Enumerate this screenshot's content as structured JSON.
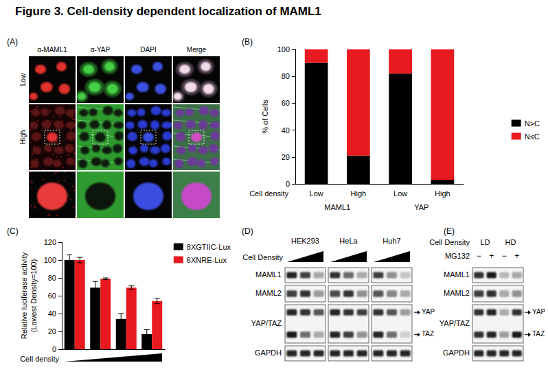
{
  "title": "Figure 3. Cell-density dependent localization of MAML1",
  "panel_a": {
    "label": "(A)",
    "columns": [
      "α-MAML1",
      "α-YAP",
      "DAPI",
      "Merge"
    ],
    "rows": [
      "Low",
      "High"
    ]
  },
  "chart_data": [
    {
      "label": "(B)",
      "type": "bar",
      "stacked": true,
      "grid": false,
      "legend": "right",
      "categories": [
        "Low",
        "High",
        "Low",
        "High"
      ],
      "groups": [
        "MAML1",
        "YAP"
      ],
      "x_label": "Cell density",
      "y_label": "% of Cells",
      "ylim": [
        0,
        100
      ],
      "yticks": [
        0,
        20,
        40,
        60,
        80,
        100
      ],
      "series": [
        {
          "name": "N>C",
          "color": "#000000",
          "values": [
            90,
            21,
            82,
            3
          ]
        },
        {
          "name": "N≤C",
          "color": "#e8191f",
          "values": [
            10,
            79,
            18,
            97
          ]
        }
      ]
    },
    {
      "label": "(C)",
      "type": "bar",
      "grid": false,
      "legend": "top right",
      "categories": [
        null,
        null,
        null,
        null
      ],
      "x_label": "Cell density",
      "y_label": "Relative luciferase activity\n(Lowest Density=100)",
      "ylim": [
        0,
        120
      ],
      "yticks": [
        0,
        20,
        40,
        60,
        80,
        100,
        120
      ],
      "series": [
        {
          "name": "8XGTIIC-Lux",
          "color": "#000000",
          "values": [
            100,
            69,
            34,
            17
          ],
          "errors": [
            6,
            7,
            6,
            5
          ]
        },
        {
          "name": "6XNRE-Lux",
          "color": "#e8191f",
          "values": [
            100,
            79,
            69,
            54
          ],
          "errors": [
            3,
            1,
            2,
            3
          ]
        }
      ]
    }
  ],
  "panel_d": {
    "label": "(D)",
    "density_label": "Cell Density",
    "cell_lines": [
      "HEK293",
      "HeLa",
      "Huh7"
    ],
    "rows": [
      "MAML1",
      "MAML2",
      "YAP/TAZ",
      "GAPDH"
    ],
    "arrows": [
      "YAP",
      "TAZ"
    ]
  },
  "panel_e": {
    "label": "(E)",
    "density_label": "Cell Density",
    "conditions": [
      "LD",
      "HD"
    ],
    "treatment": "MG132",
    "treatment_states": [
      "−",
      "+",
      "−",
      "+"
    ],
    "rows": [
      "MAML1",
      "MAML2",
      "YAP/TAZ",
      "GAPDH"
    ],
    "arrows": [
      "YAP",
      "TAZ"
    ]
  }
}
